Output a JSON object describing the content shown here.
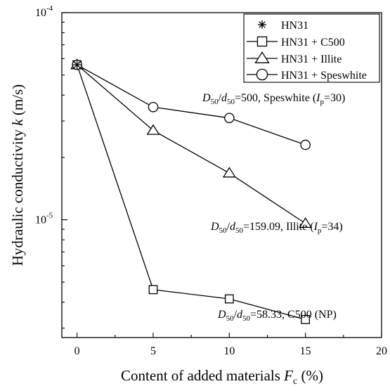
{
  "chart_data": {
    "type": "line",
    "xlabel_main": "Content of added materials ",
    "xlabel_var": "F",
    "xlabel_sub": "c",
    "xlabel_unit": " (%)",
    "ylabel_main": "Hydraulic conductivity ",
    "ylabel_var": "k",
    "ylabel_unit": " (m/s)",
    "xlim": [
      -1,
      20
    ],
    "ylim": [
      2.7e-06,
      0.0001
    ],
    "yscale": "log",
    "x_ticks": [
      0,
      5,
      10,
      15,
      20
    ],
    "x_tick_labels": [
      "0",
      "5",
      "10",
      "15",
      "20"
    ],
    "y_tick_labels": [
      {
        "value": 0.0001,
        "base": "10",
        "exp": "-4"
      },
      {
        "value": 1e-05,
        "base": "10",
        "exp": "-5"
      }
    ],
    "legend_position": "top-right",
    "series": [
      {
        "name": "HN31",
        "marker": "star",
        "x": [
          0
        ],
        "y": [
          5.6e-05
        ]
      },
      {
        "name": "HN31 + C500",
        "marker": "square",
        "x": [
          0,
          5,
          10,
          15
        ],
        "y": [
          5.6e-05,
          4.6e-06,
          4.15e-06,
          3.3e-06
        ]
      },
      {
        "name": "HN31 + Illite",
        "marker": "triangle",
        "x": [
          0,
          5,
          10,
          15
        ],
        "y": [
          5.6e-05,
          2.7e-05,
          1.68e-05,
          9.6e-06
        ]
      },
      {
        "name": "HN31 + Speswhite",
        "marker": "circle",
        "x": [
          0,
          5,
          10,
          15
        ],
        "y": [
          5.6e-05,
          3.5e-05,
          3.1e-05,
          2.3e-05
        ]
      }
    ],
    "annotations": [
      {
        "id": "speswhite",
        "x": 15,
        "y": 2.3e-05,
        "D": "D",
        "D_sub": "50",
        "slash": "/",
        "d": "d",
        "d_sub": "50",
        "text": "=500, Speswhite (",
        "I": "I",
        "I_sub": "p",
        "tail": "=30)"
      },
      {
        "id": "illite",
        "x": 15,
        "y": 9.6e-06,
        "D": "D",
        "D_sub": "50",
        "slash": "/",
        "d": "d",
        "d_sub": "50",
        "text": "=159.09, Illite (",
        "I": "I",
        "I_sub": "p",
        "tail": "=34)"
      },
      {
        "id": "c500",
        "x": 15,
        "y": 3.3e-06,
        "D": "D",
        "D_sub": "50",
        "slash": "/",
        "d": "d",
        "d_sub": "50",
        "text": "=58.33, C500 (NP)",
        "I": "",
        "I_sub": "",
        "tail": ""
      }
    ]
  }
}
